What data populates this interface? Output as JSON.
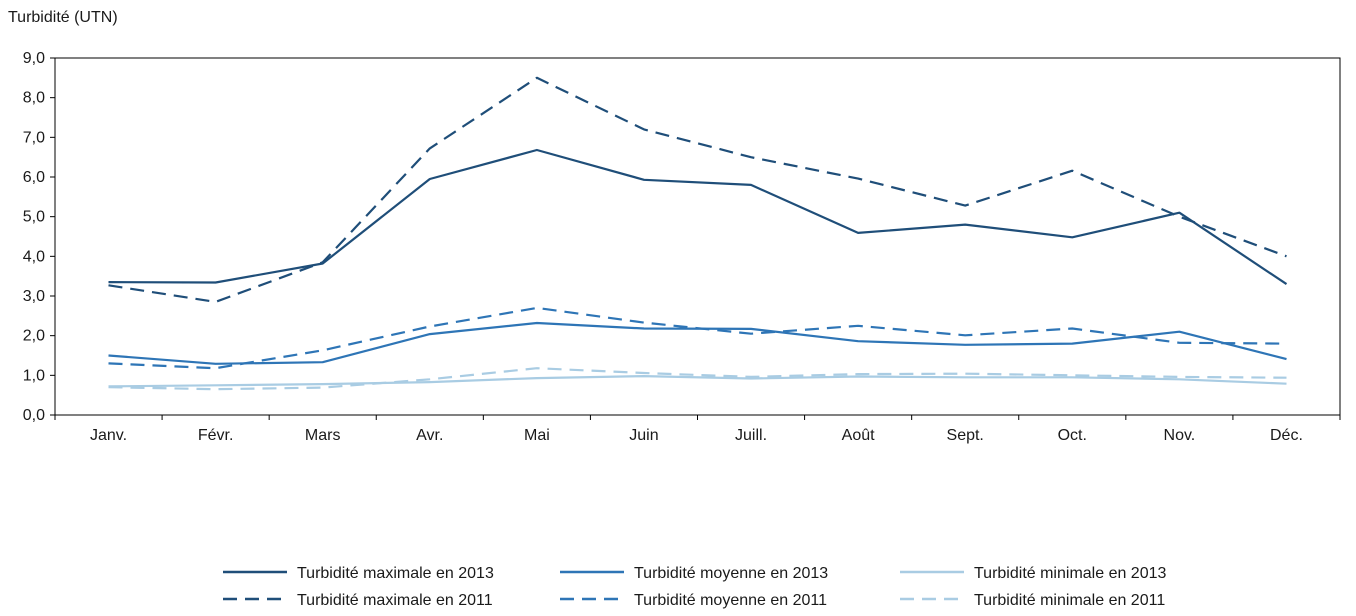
{
  "chart_data": {
    "type": "line",
    "title": "",
    "ylabel": "Turbidité (UTN)",
    "xlabel": "",
    "categories": [
      "Janv.",
      "Févr.",
      "Mars",
      "Avr.",
      "Mai",
      "Juin",
      "Juill.",
      "Août",
      "Sept.",
      "Oct.",
      "Nov.",
      "Déc."
    ],
    "ylim": [
      0,
      9
    ],
    "yticks": [
      "0,0",
      "1,0",
      "2,0",
      "3,0",
      "4,0",
      "5,0",
      "6,0",
      "7,0",
      "8,0",
      "9,0"
    ],
    "grid": false,
    "legend_position": "bottom",
    "series": [
      {
        "name": "Turbidité maximale en 2013",
        "color": "#1f4e79",
        "dashed": false,
        "values": [
          3.35,
          3.34,
          3.82,
          5.95,
          6.68,
          5.93,
          5.8,
          4.59,
          4.8,
          4.48,
          5.1,
          3.3
        ]
      },
      {
        "name": "Turbidité moyenne en 2013",
        "color": "#2e75b6",
        "dashed": false,
        "values": [
          1.5,
          1.29,
          1.33,
          2.04,
          2.32,
          2.18,
          2.17,
          1.86,
          1.77,
          1.8,
          2.1,
          1.41
        ]
      },
      {
        "name": "Turbidité minimale en 2013",
        "color": "#a9cce3",
        "dashed": false,
        "values": [
          0.72,
          0.75,
          0.78,
          0.83,
          0.93,
          0.98,
          0.92,
          0.97,
          0.95,
          0.95,
          0.9,
          0.79
        ]
      },
      {
        "name": "Turbidité maximale en 2011",
        "color": "#1f4e79",
        "dashed": true,
        "values": [
          3.27,
          2.85,
          3.85,
          6.72,
          8.5,
          7.2,
          6.5,
          5.96,
          5.28,
          6.16,
          5.0,
          4.0
        ]
      },
      {
        "name": "Turbidité moyenne en 2011",
        "color": "#2e75b6",
        "dashed": true,
        "values": [
          1.3,
          1.18,
          1.63,
          2.23,
          2.7,
          2.33,
          2.05,
          2.25,
          2.01,
          2.18,
          1.82,
          1.8
        ]
      },
      {
        "name": "Turbidité minimale en 2011",
        "color": "#a9cce3",
        "dashed": true,
        "values": [
          0.7,
          0.65,
          0.69,
          0.9,
          1.18,
          1.06,
          0.96,
          1.03,
          1.04,
          1.0,
          0.96,
          0.94
        ]
      }
    ]
  }
}
